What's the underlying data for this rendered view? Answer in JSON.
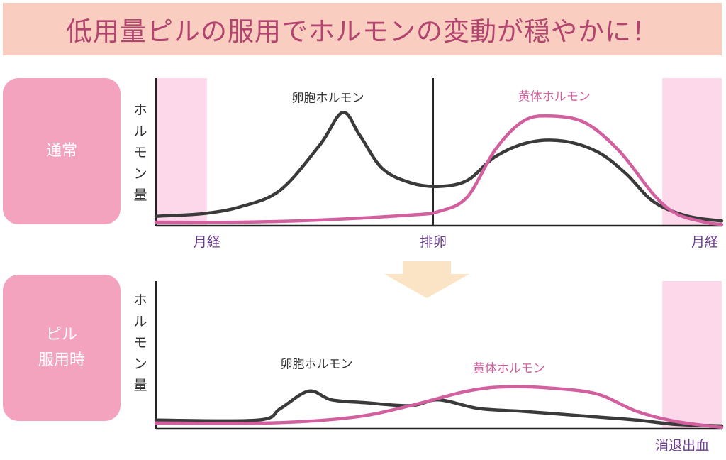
{
  "banner": {
    "title": "低用量ピルの服用でホルモンの変動が穏やかに！"
  },
  "rows": {
    "normal": {
      "label_lines": [
        "通常"
      ]
    },
    "pill": {
      "label_lines": [
        "ピル",
        "服用時"
      ]
    }
  },
  "colors": {
    "banner_bg": "#f9cdbf",
    "banner_text": "#b2446f",
    "side_bg": "#f3a3bd",
    "period_band": "#fcd8ea",
    "follicle_line": "#3a3a3a",
    "luteal_line": "#d2609e",
    "phase_label": "#6b3d8c",
    "arrow": "#fbe4c6"
  },
  "chart_data": [
    {
      "type": "line",
      "title": "",
      "ylabel": "ホルモン量",
      "xlim": [
        0,
        100
      ],
      "ylim": [
        0,
        100
      ],
      "x_labels": [
        {
          "text": "月経",
          "x": 9
        },
        {
          "text": "排卵",
          "x": 49
        },
        {
          "text": "月経",
          "x": 97
        }
      ],
      "period_bands": [
        [
          0,
          9
        ],
        [
          89.5,
          100
        ]
      ],
      "ovulation_line_x": 49,
      "series": [
        {
          "name": "卵胞ホルモン",
          "label_at": [
            24,
            104
          ],
          "points": [
            [
              0,
              8
            ],
            [
              8,
              10
            ],
            [
              15,
              16
            ],
            [
              22,
              30
            ],
            [
              29,
              68
            ],
            [
              33,
              95
            ],
            [
              36,
              76
            ],
            [
              40,
              48
            ],
            [
              45,
              36
            ],
            [
              50,
              33
            ],
            [
              55,
              38
            ],
            [
              60,
              58
            ],
            [
              66,
              70
            ],
            [
              72,
              71
            ],
            [
              78,
              62
            ],
            [
              83,
              44
            ],
            [
              88,
              20
            ],
            [
              94,
              8
            ],
            [
              100,
              4
            ]
          ]
        },
        {
          "name": "黄体ホルモン",
          "label_at": [
            64,
            105
          ],
          "points": [
            [
              0,
              3
            ],
            [
              15,
              3
            ],
            [
              30,
              5
            ],
            [
              45,
              9
            ],
            [
              50,
              12
            ],
            [
              55,
              24
            ],
            [
              60,
              64
            ],
            [
              65,
              88
            ],
            [
              70,
              92
            ],
            [
              76,
              86
            ],
            [
              82,
              62
            ],
            [
              88,
              26
            ],
            [
              92,
              10
            ],
            [
              97,
              3
            ],
            [
              100,
              1
            ]
          ]
        }
      ]
    },
    {
      "type": "line",
      "title": "",
      "ylabel": "ホルモン量",
      "xlim": [
        0,
        100
      ],
      "ylim": [
        0,
        100
      ],
      "x_labels": [
        {
          "text": "消退出血",
          "x": 93
        }
      ],
      "period_bands": [
        [
          89.5,
          100
        ]
      ],
      "series": [
        {
          "name": "卵胞ホルモン",
          "label_at": [
            22,
            42
          ],
          "points": [
            [
              0,
              6
            ],
            [
              18,
              6
            ],
            [
              22,
              14
            ],
            [
              27,
              26
            ],
            [
              31,
              20
            ],
            [
              37,
              18
            ],
            [
              45,
              16
            ],
            [
              50,
              20
            ],
            [
              57,
              14
            ],
            [
              65,
              12
            ],
            [
              75,
              9
            ],
            [
              85,
              6
            ],
            [
              92,
              3
            ],
            [
              100,
              2
            ]
          ]
        },
        {
          "name": "黄体ホルモン",
          "label_at": [
            56,
            39
          ],
          "points": [
            [
              0,
              4
            ],
            [
              20,
              4
            ],
            [
              35,
              8
            ],
            [
              45,
              16
            ],
            [
              55,
              26
            ],
            [
              62,
              29
            ],
            [
              70,
              28
            ],
            [
              78,
              24
            ],
            [
              85,
              12
            ],
            [
              92,
              5
            ],
            [
              100,
              1
            ]
          ]
        }
      ]
    }
  ]
}
